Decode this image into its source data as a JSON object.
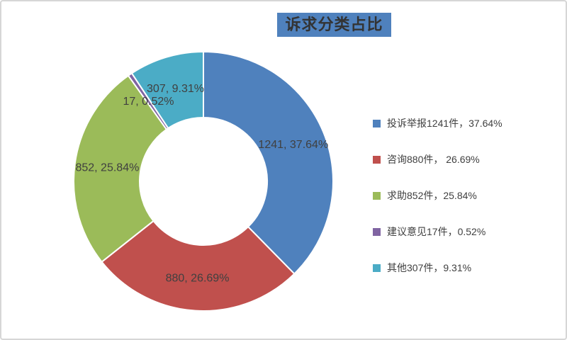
{
  "chart_data": {
    "type": "pie",
    "subtype": "donut",
    "title": "诉求分类占比",
    "title_bg_color": "#4F81BD",
    "categories": [
      "投诉举报",
      "咨询",
      "求助",
      "建议意见",
      "其他"
    ],
    "values": [
      1241,
      880,
      852,
      17,
      307
    ],
    "percents": [
      37.64,
      26.69,
      25.84,
      0.52,
      9.31
    ],
    "unit": "件",
    "colors": [
      "#4F81BD",
      "#C0504D",
      "#9BBB59",
      "#8064A2",
      "#4BACC6"
    ],
    "slice_labels": [
      "1241, 37.64%",
      "880, 26.69%",
      "852, 25.84%",
      "17, 0.52%",
      "307, 9.31%"
    ],
    "legend": [
      "投诉举报1241件，37.64%",
      "咨询880件， 26.69%",
      "求助852件，25.84%",
      "建议意见17件，0.52%",
      "其他307件，9.31%"
    ],
    "legend_position": "right",
    "start_angle_deg": 0,
    "direction": "clockwise",
    "donut_hole_ratio": 0.49,
    "label_color": "#404040",
    "separator_color": "#ffffff"
  }
}
